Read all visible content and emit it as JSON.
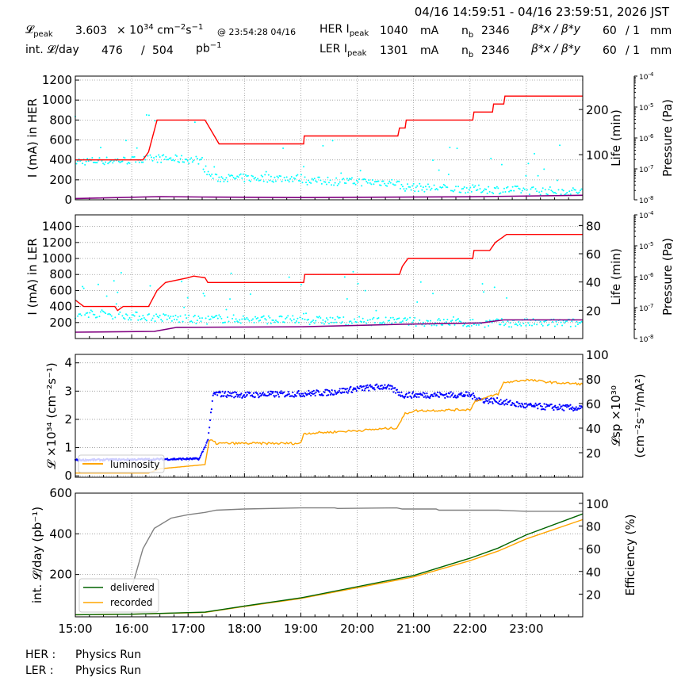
{
  "header": {
    "range": "04/16 14:59:51 - 04/16 23:59:51, 2026 JST",
    "lpeak_label": "𝓛",
    "lpeak_sub": "peak",
    "lpeak_value": "3.603",
    "lpeak_unit": "× 10",
    "lpeak_exp": "34",
    "lpeak_unit2": " cm",
    "lpeak_e2": "−2",
    "lpeak_s": "s",
    "lpeak_e3": "−1",
    "lpeak_time": "@ 23:54:28 04/16",
    "intl_label": "int. 𝓛/day",
    "intl_value": "476",
    "intl_sep": "/",
    "intl_total": "504",
    "intl_unit": "pb",
    "intl_exp": "−1",
    "her": {
      "label": "HER I",
      "sub": "peak",
      "current": "1040",
      "unit": "mA",
      "nb_label": "n",
      "nb_sub": "b",
      "nb": "2346",
      "beta_label": "β*x / β*y",
      "bx": "60",
      "by": "/ 1",
      "bunit": "mm"
    },
    "ler": {
      "label": "LER I",
      "sub": "peak",
      "current": "1301",
      "unit": "mA",
      "nb_label": "n",
      "nb_sub": "b",
      "nb": "2346",
      "beta_label": "β*x / β*y",
      "bx": "60",
      "by": "/ 1",
      "bunit": "mm"
    }
  },
  "footer": {
    "her_label": "HER :",
    "her_status": "Physics Run",
    "ler_label": "LER :",
    "ler_status": "Physics Run"
  },
  "colors": {
    "current": "#ff0000",
    "life": "#00ffff",
    "pressure": "#800080",
    "lsp": "#0000ff",
    "lum": "#ffa500",
    "delivered": "#006400",
    "recorded": "#ffa500",
    "eff": "#808080"
  },
  "chart_data": [
    {
      "type": "line",
      "name": "HER",
      "ylabel": "I (mA) in HER",
      "ylabel2": "Life (min)",
      "ylabel3": "Pressure (Pa)",
      "xlim": [
        15,
        24
      ],
      "ylim": [
        0,
        1240
      ],
      "ylim2": [
        0,
        274
      ],
      "ylim3": [
        -8,
        -4
      ],
      "yticks": [
        0,
        200,
        400,
        600,
        800,
        1000,
        1200
      ],
      "y2ticks": [
        100,
        200
      ],
      "y3ticks": [
        -4,
        -5,
        -6,
        -7,
        -8
      ],
      "current": [
        [
          15,
          400
        ],
        [
          16.2,
          400
        ],
        [
          16.3,
          480
        ],
        [
          16.45,
          800
        ],
        [
          17.3,
          800
        ],
        [
          17.55,
          560
        ],
        [
          19.05,
          560
        ],
        [
          19.06,
          640
        ],
        [
          20.72,
          640
        ],
        [
          20.75,
          720
        ],
        [
          20.85,
          720
        ],
        [
          20.87,
          800
        ],
        [
          22.05,
          800
        ],
        [
          22.07,
          880
        ],
        [
          22.4,
          880
        ],
        [
          22.42,
          960
        ],
        [
          22.6,
          960
        ],
        [
          22.62,
          1040
        ],
        [
          24,
          1040
        ]
      ],
      "life_trend": [
        [
          15,
          85
        ],
        [
          16.2,
          88
        ],
        [
          16.4,
          92
        ],
        [
          17.2,
          88
        ],
        [
          17.35,
          60
        ],
        [
          17.45,
          48
        ],
        [
          19,
          48
        ],
        [
          19.1,
          42
        ],
        [
          20.7,
          38
        ],
        [
          20.8,
          28
        ],
        [
          22,
          24
        ],
        [
          24,
          18
        ]
      ],
      "pressure": [
        [
          15,
          1.1e-08
        ],
        [
          16.5,
          1.27e-08
        ],
        [
          17.4,
          1.22e-08
        ],
        [
          19,
          1.18e-08
        ],
        [
          22,
          1.25e-08
        ],
        [
          24,
          1.4e-08
        ]
      ]
    },
    {
      "type": "line",
      "name": "LER",
      "ylabel": "I (mA) in LER",
      "ylabel2": "Life (min)",
      "ylabel3": "Pressure (Pa)",
      "xlim": [
        15,
        24
      ],
      "ylim": [
        0,
        1545
      ],
      "ylim2": [
        0,
        87.5
      ],
      "ylim3": [
        -8,
        -4
      ],
      "yticks": [
        200,
        400,
        600,
        800,
        1000,
        1200,
        1400
      ],
      "y2ticks": [
        20,
        40,
        60,
        80
      ],
      "y3ticks": [
        -4,
        -5,
        -6,
        -7,
        -8
      ],
      "current": [
        [
          15,
          480
        ],
        [
          15.15,
          400
        ],
        [
          15.7,
          400
        ],
        [
          15.75,
          350
        ],
        [
          15.85,
          400
        ],
        [
          16.3,
          400
        ],
        [
          16.45,
          600
        ],
        [
          16.6,
          700
        ],
        [
          17,
          760
        ],
        [
          17.1,
          780
        ],
        [
          17.3,
          760
        ],
        [
          17.35,
          700
        ],
        [
          19.05,
          700
        ],
        [
          19.07,
          800
        ],
        [
          20.75,
          800
        ],
        [
          20.8,
          900
        ],
        [
          20.9,
          1000
        ],
        [
          22.05,
          1000
        ],
        [
          22.07,
          1100
        ],
        [
          22.35,
          1100
        ],
        [
          22.45,
          1200
        ],
        [
          22.65,
          1300
        ],
        [
          24,
          1300
        ]
      ],
      "life_trend": [
        [
          15,
          14
        ],
        [
          15.2,
          18
        ],
        [
          16,
          16
        ],
        [
          17.3,
          13
        ],
        [
          17.5,
          14
        ],
        [
          19,
          13
        ],
        [
          20.8,
          12
        ],
        [
          22,
          11
        ],
        [
          24,
          11
        ]
      ],
      "pressure": [
        [
          15,
          1.6e-08
        ],
        [
          16.4,
          1.7e-08
        ],
        [
          16.8,
          2.3e-08
        ],
        [
          19,
          2.4e-08
        ],
        [
          20.8,
          2.9e-08
        ],
        [
          22.2,
          3.2e-08
        ],
        [
          22.6,
          4e-08
        ],
        [
          24,
          4e-08
        ]
      ]
    },
    {
      "type": "line",
      "name": "Luminosity",
      "ylabel": "𝓛 ×10³⁴ (cm⁻²s⁻¹)",
      "ylabel2a": "𝓛sp ×10³⁰",
      "ylabel2b": "(cm⁻²s⁻¹/mA²)",
      "xlim": [
        15,
        24
      ],
      "ylim": [
        -0.05,
        4.3
      ],
      "ylim2": [
        0,
        100
      ],
      "yticks": [
        0,
        1,
        2,
        3,
        4
      ],
      "y2ticks": [
        20,
        40,
        60,
        80,
        100
      ],
      "legend": [
        "luminosity"
      ],
      "legend_loc": "lower left",
      "luminosity": [
        [
          15,
          0.1
        ],
        [
          16.3,
          0.1
        ],
        [
          16.5,
          0.25
        ],
        [
          17.3,
          0.4
        ],
        [
          17.38,
          1.3
        ],
        [
          17.5,
          1.15
        ],
        [
          19,
          1.15
        ],
        [
          19.05,
          1.5
        ],
        [
          20,
          1.6
        ],
        [
          20.7,
          1.7
        ],
        [
          20.85,
          2.2
        ],
        [
          21,
          2.3
        ],
        [
          22,
          2.35
        ],
        [
          22.1,
          2.65
        ],
        [
          22.5,
          2.9
        ],
        [
          22.6,
          3.3
        ],
        [
          23,
          3.4
        ],
        [
          23.5,
          3.3
        ],
        [
          24,
          3.25
        ]
      ],
      "lsp": [
        [
          15,
          14
        ],
        [
          17.2,
          15
        ],
        [
          17.35,
          30
        ],
        [
          17.45,
          68
        ],
        [
          18,
          67
        ],
        [
          19,
          68
        ],
        [
          19.5,
          69
        ],
        [
          20,
          72
        ],
        [
          20.5,
          74
        ],
        [
          20.7,
          70
        ],
        [
          20.8,
          67
        ],
        [
          22,
          67
        ],
        [
          22.2,
          63
        ],
        [
          22.5,
          62
        ],
        [
          23,
          58
        ],
        [
          24,
          56
        ]
      ]
    },
    {
      "type": "line",
      "name": "Integrated",
      "ylabel": "int. 𝓛/day (pb⁻¹)",
      "ylabel2": "Efficiency (%)",
      "xlim": [
        15,
        24
      ],
      "ylim": [
        -8,
        600
      ],
      "ylim2": [
        0,
        109
      ],
      "yticks": [
        200,
        400,
        600
      ],
      "y2ticks": [
        20,
        40,
        60,
        80,
        100
      ],
      "xticks": [
        "15:00",
        "16:00",
        "17:00",
        "18:00",
        "19:00",
        "20:00",
        "21:00",
        "22:00",
        "23:00"
      ],
      "legend": [
        "delivered",
        "recorded"
      ],
      "legend_loc": "lower left",
      "delivered": [
        [
          15,
          2
        ],
        [
          16,
          5
        ],
        [
          17.3,
          15
        ],
        [
          18,
          45
        ],
        [
          19,
          85
        ],
        [
          20,
          140
        ],
        [
          21,
          195
        ],
        [
          22,
          280
        ],
        [
          22.5,
          330
        ],
        [
          23,
          395
        ],
        [
          24,
          498
        ]
      ],
      "recorded": [
        [
          15,
          2
        ],
        [
          16,
          5
        ],
        [
          17.3,
          14
        ],
        [
          18,
          43
        ],
        [
          19,
          82
        ],
        [
          20,
          135
        ],
        [
          21,
          188
        ],
        [
          22,
          268
        ],
        [
          22.5,
          315
        ],
        [
          23,
          375
        ],
        [
          24,
          470
        ]
      ],
      "efficiency": [
        [
          16,
          25
        ],
        [
          16.2,
          60
        ],
        [
          16.4,
          78
        ],
        [
          16.7,
          87
        ],
        [
          17,
          90
        ],
        [
          17.3,
          92
        ],
        [
          17.5,
          94
        ],
        [
          18,
          95
        ],
        [
          19,
          96
        ],
        [
          19.6,
          96
        ],
        [
          19.65,
          95.5
        ],
        [
          20.7,
          96
        ],
        [
          20.8,
          95
        ],
        [
          21.4,
          95
        ],
        [
          21.45,
          94
        ],
        [
          22.5,
          94
        ],
        [
          23,
          93
        ],
        [
          24,
          93
        ]
      ]
    }
  ]
}
